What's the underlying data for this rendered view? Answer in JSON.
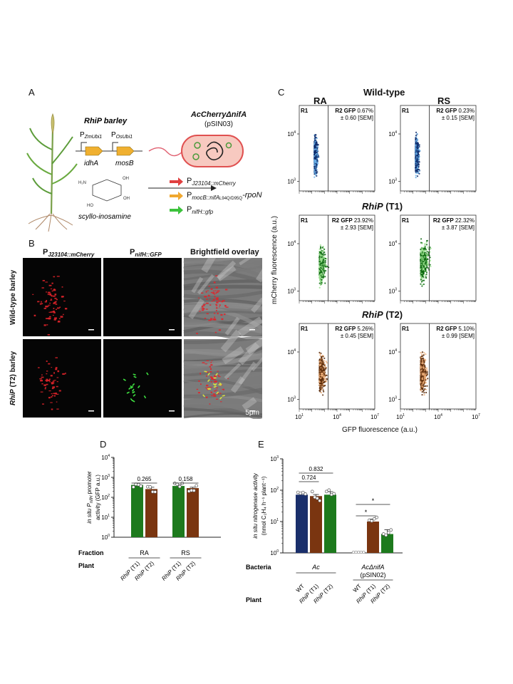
{
  "panels": {
    "a": "A",
    "b": "B",
    "c": "C",
    "d": "D",
    "e": "E"
  },
  "panel_a": {
    "plant_title": "RhiP barley",
    "promoter1": "ZmUbi1",
    "promoter2": "OsUbi1",
    "gene1": "idhA",
    "gene2": "mosB",
    "molecule": "scyllo-inosamine",
    "strain_title": "AcCherryΔnifA",
    "strain_sub": "(pSIN03)",
    "construct1": "J23104::mCherry",
    "construct2_main": "mocB::nifA",
    "construct2_sub": "L94Q/D95Q",
    "construct2_tail": "-rpoN",
    "construct3": "nifH::gfp",
    "colors": {
      "red": "#e04040",
      "orange": "#f0a830",
      "green": "#3cc23c"
    }
  },
  "panel_b": {
    "col1": "J23104::mCherry",
    "col2": "nifH::GFP",
    "col3": "Brightfield overlay",
    "row1": "Wild-type barley",
    "row2_italic": "RhiP",
    "row2_rest": " (T2) barley",
    "scalebar": "5μm"
  },
  "panel_c": {
    "title_wt": "Wild-type",
    "col_ra": "RA",
    "col_rs": "RS",
    "title_t1_italic": "RhiP",
    "title_t1_rest": " (T1)",
    "title_t2_italic": "RhiP",
    "title_t2_rest": " (T2)",
    "ylabel": "mCherry fluorescence (a.u.)",
    "xlabel": "GFP fluorescence (a.u.)",
    "gate1": "R1",
    "gate2": "R2 GFP",
    "sem_suffix": " [SEM]",
    "plots": [
      {
        "row": "wt",
        "col": "RA",
        "pct": "0.67%",
        "sem": "± 0.60"
      },
      {
        "row": "wt",
        "col": "RS",
        "pct": "0.23%",
        "sem": "± 0.15"
      },
      {
        "row": "t1",
        "col": "RA",
        "pct": "23.92%",
        "sem": "± 2.93"
      },
      {
        "row": "t1",
        "col": "RS",
        "pct": "22.32%",
        "sem": "± 3.87"
      },
      {
        "row": "t2",
        "col": "RA",
        "pct": "5.26%",
        "sem": "± 0.45"
      },
      {
        "row": "t2",
        "col": "RS",
        "pct": "5.10%",
        "sem": "± 0.99"
      }
    ],
    "yticks": [
      "10",
      "10",
      "10"
    ],
    "yexp": [
      "3",
      "4"
    ],
    "xticks": [
      "10",
      "10",
      "10"
    ],
    "xexp": [
      "1",
      "4",
      "7"
    ],
    "colors": {
      "wt_dark": "#0d2a6b",
      "wt_light": "#6ab0e8",
      "t1_dark": "#0e6a12",
      "t1_light": "#9be08f",
      "t2_dark": "#5a2a08",
      "t2_light": "#f0b07a"
    }
  },
  "chart_data": [
    {
      "type": "bar",
      "panel": "D",
      "ylabel_prefix": "in situ P",
      "ylabel_sub": "nifH",
      "ylabel_suffix": " promoter",
      "ylabel_line2": "activity (GFP a.u.)",
      "yscale": "log",
      "ylim": [
        1,
        10000
      ],
      "yticks": [
        "10",
        "10",
        "10",
        "10",
        "10"
      ],
      "yexp": [
        "0",
        "1",
        "2",
        "3",
        "4"
      ],
      "row_fraction": "Fraction",
      "row_plant": "Plant",
      "fractions": [
        "RA",
        "RS"
      ],
      "categories": [
        "RhiP (T1)",
        "RhiP (T2)",
        "RhiP (T1)",
        "RhiP (T2)"
      ],
      "cat_italic": "RhiP",
      "cat_rest": [
        " (T1)",
        " (T2)",
        " (T1)",
        " (T2)"
      ],
      "values": [
        420,
        260,
        370,
        290
      ],
      "errors": [
        90,
        60,
        50,
        30
      ],
      "colors": [
        "#1d7a1d",
        "#7a3510",
        "#1d7a1d",
        "#7a3510"
      ],
      "pvalues": [
        "0.265",
        "0.158"
      ]
    },
    {
      "type": "bar",
      "panel": "E",
      "ylabel_line1": "in situ nitrogenase activity",
      "ylabel_line2": "(nmol C₂H₄ h⁻¹ plant⁻¹)",
      "yscale": "log",
      "ylim": [
        1,
        1000
      ],
      "yticks": [
        "10",
        "10",
        "10",
        "10"
      ],
      "yexp": [
        "0",
        "1",
        "2",
        "3"
      ],
      "row_bacteria": "Bacteria",
      "row_plant": "Plant",
      "bacteria": [
        "Ac",
        "AcΔnifA"
      ],
      "bacteria_sub": "(pSIN02)",
      "categories": [
        "WT",
        "RhiP (T1)",
        "RhiP (T2)",
        "WT",
        "RhiP (T1)",
        "RhiP (T2)"
      ],
      "cat_italic": [
        "",
        "RhiP",
        "RhiP",
        "",
        "RhiP",
        "RhiP"
      ],
      "cat_rest": [
        "WT",
        " (T1)",
        " (T2)",
        "WT",
        " (T1)",
        " (T2)"
      ],
      "values": [
        72,
        65,
        72,
        1,
        10,
        4
      ],
      "errors": [
        10,
        8,
        18,
        0,
        2,
        1.5
      ],
      "colors": [
        "#1a2f6b",
        "#7a3510",
        "#1d7a1d",
        "#888888",
        "#7a3510",
        "#1d7a1d"
      ],
      "pvalues": [
        "0.724",
        "0.832"
      ],
      "star": "*"
    }
  ]
}
